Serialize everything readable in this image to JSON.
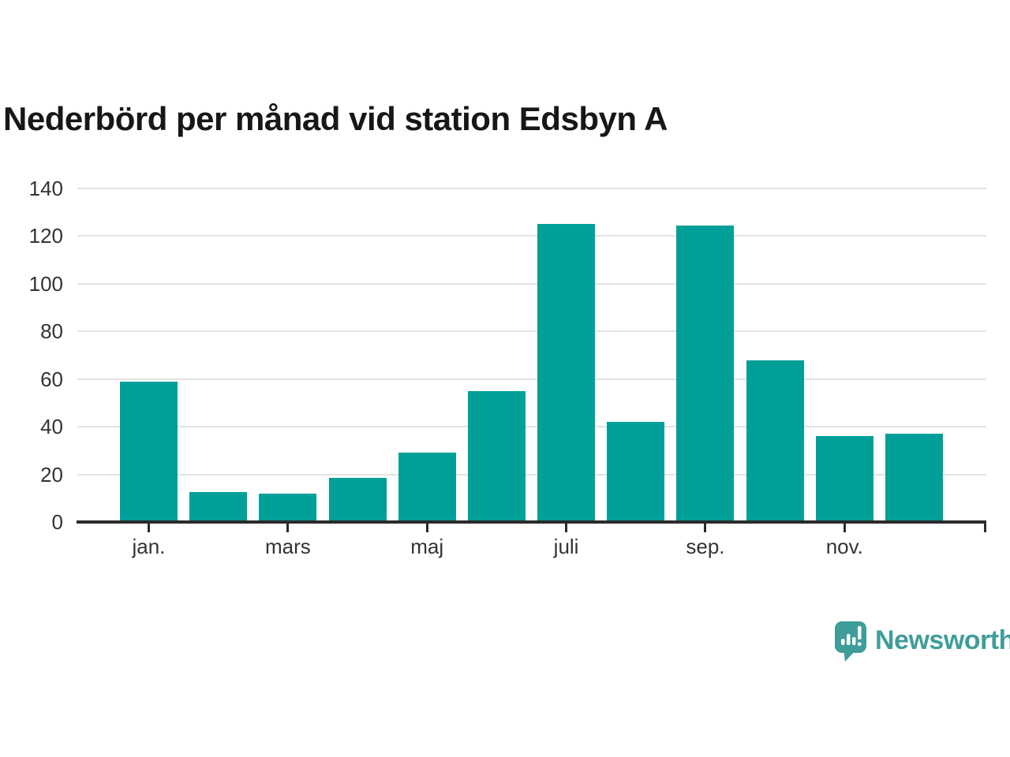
{
  "chart_data": {
    "type": "bar",
    "title": "Nederbörd per månad vid station Edsbyn A",
    "values": [
      59,
      12.5,
      12,
      18.5,
      29,
      55,
      125,
      42,
      124.5,
      68,
      36,
      37
    ],
    "x_tick_labels": [
      "jan.",
      "mars",
      "maj",
      "juli",
      "sep.",
      "nov."
    ],
    "x_tick_bar_indices": [
      0,
      2,
      4,
      6,
      8,
      10
    ],
    "y_ticks": [
      0,
      20,
      40,
      60,
      80,
      100,
      120,
      140
    ],
    "ylim": [
      0,
      140
    ],
    "grid": true,
    "legend_position": "none",
    "bar_color": "#00a099",
    "axis_color": "#2b2b2b",
    "grid_color": "#e3e3e3",
    "tick_label_color": "#333333",
    "title_color": "#171717"
  },
  "logo": {
    "text": "Newsworthy",
    "color": "#3f9d99",
    "icon": "newsworthy-speech-bubble-chart-icon"
  }
}
